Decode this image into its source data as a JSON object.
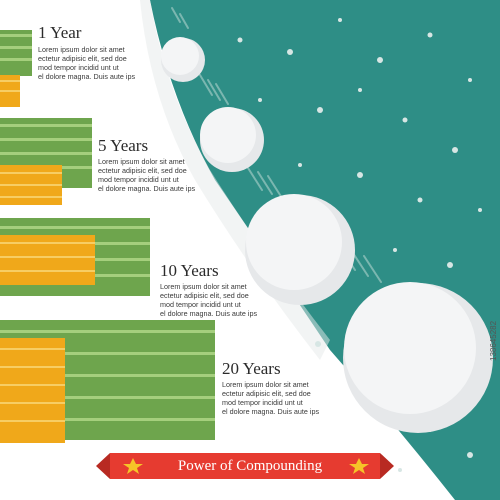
{
  "colors": {
    "teal": "#2e8e86",
    "snow": "#f1f3f4",
    "cash": "#6ea54d",
    "coin": "#f0a81a",
    "banner": "#e63b30",
    "star": "#f6c328"
  },
  "stages": [
    {
      "title": "1 Year",
      "text": "Lorem ipsum dolor sit amet\nectetur adipisic elit, sed doe\nmod tempor incidid unt ut\nel dolore magna. Duis aute ips"
    },
    {
      "title": "5 Years",
      "text": "Lorem ipsum dolor sit amet\nectetur adipisic elit, sed doe\nmod tempor incidid unt ut\nel dolore magna. Duis aute ips"
    },
    {
      "title": "10 Years",
      "text": "Lorem ipsum dolor sit amet\nectetur adipisic elit, sed doe\nmod tempor incidid unt ut\nel dolore magna. Duis aute ips"
    },
    {
      "title": "20 Years",
      "text": "Lorem ipsum dolor sit amet\nectetur adipisic elit, sed doe\nmod tempor incidid unt ut\nel dolore magna. Duis aute ips"
    }
  ],
  "banner": {
    "text": "Power of Compounding"
  },
  "watermark": "138645282"
}
